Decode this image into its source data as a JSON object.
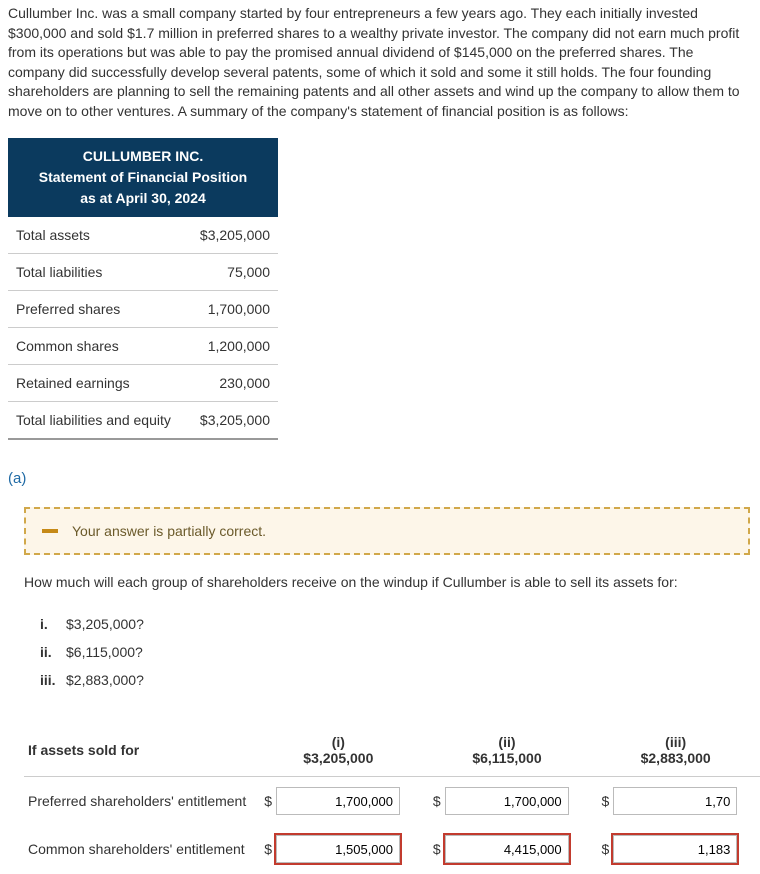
{
  "intro": "Cullumber Inc. was a small company started by four entrepreneurs a few years ago. They each initially invested $300,000 and sold $1.7 million in preferred shares to a wealthy private investor. The company did not earn much profit from its operations but was able to pay the promised annual dividend of $145,000 on the preferred shares. The company did successfully develop several patents, some of which it sold and some it still holds. The four founding shareholders are planning to sell the remaining patents and all other assets and wind up the company to allow them to move on to other ventures. A summary of the company's statement of financial position is as follows:",
  "sfp": {
    "header1": "CULLUMBER INC.",
    "header2": "Statement of Financial Position",
    "header3": "as at April 30, 2024",
    "rows": [
      {
        "label": "Total assets",
        "value": "$3,205,000"
      },
      {
        "label": "Total liabilities",
        "value": "75,000"
      },
      {
        "label": "Preferred shares",
        "value": "1,700,000"
      },
      {
        "label": "Common shares",
        "value": "1,200,000"
      },
      {
        "label": "Retained earnings",
        "value": "230,000"
      },
      {
        "label": "Total liabilities and equity",
        "value": "$3,205,000"
      }
    ]
  },
  "part": "(a)",
  "partial_msg": "Your answer is partially correct.",
  "question": "How much will each group of shareholders receive on the windup if Cullumber is able to sell its assets for:",
  "scenarios": [
    {
      "num": "i.",
      "text": "$3,205,000?"
    },
    {
      "num": "ii.",
      "text": "$6,115,000?"
    },
    {
      "num": "iii.",
      "text": "$2,883,000?"
    }
  ],
  "answers": {
    "title": "If assets sold for",
    "cols": [
      {
        "num": "(i)",
        "val": "$3,205,000"
      },
      {
        "num": "(ii)",
        "val": "$6,115,000"
      },
      {
        "num": "(iii)",
        "val": "$2,883,000"
      }
    ],
    "rows": [
      {
        "label": "Preferred shareholders' entitlement",
        "cells": [
          {
            "val": "1,700,000",
            "err": false
          },
          {
            "val": "1,700,000",
            "err": false
          },
          {
            "val": "1,70",
            "err": false
          }
        ]
      },
      {
        "label": "Common shareholders' entitlement",
        "cells": [
          {
            "val": "1,505,000",
            "err": true
          },
          {
            "val": "4,415,000",
            "err": true
          },
          {
            "val": "1,183",
            "err": true
          }
        ]
      }
    ],
    "dollar": "$"
  }
}
